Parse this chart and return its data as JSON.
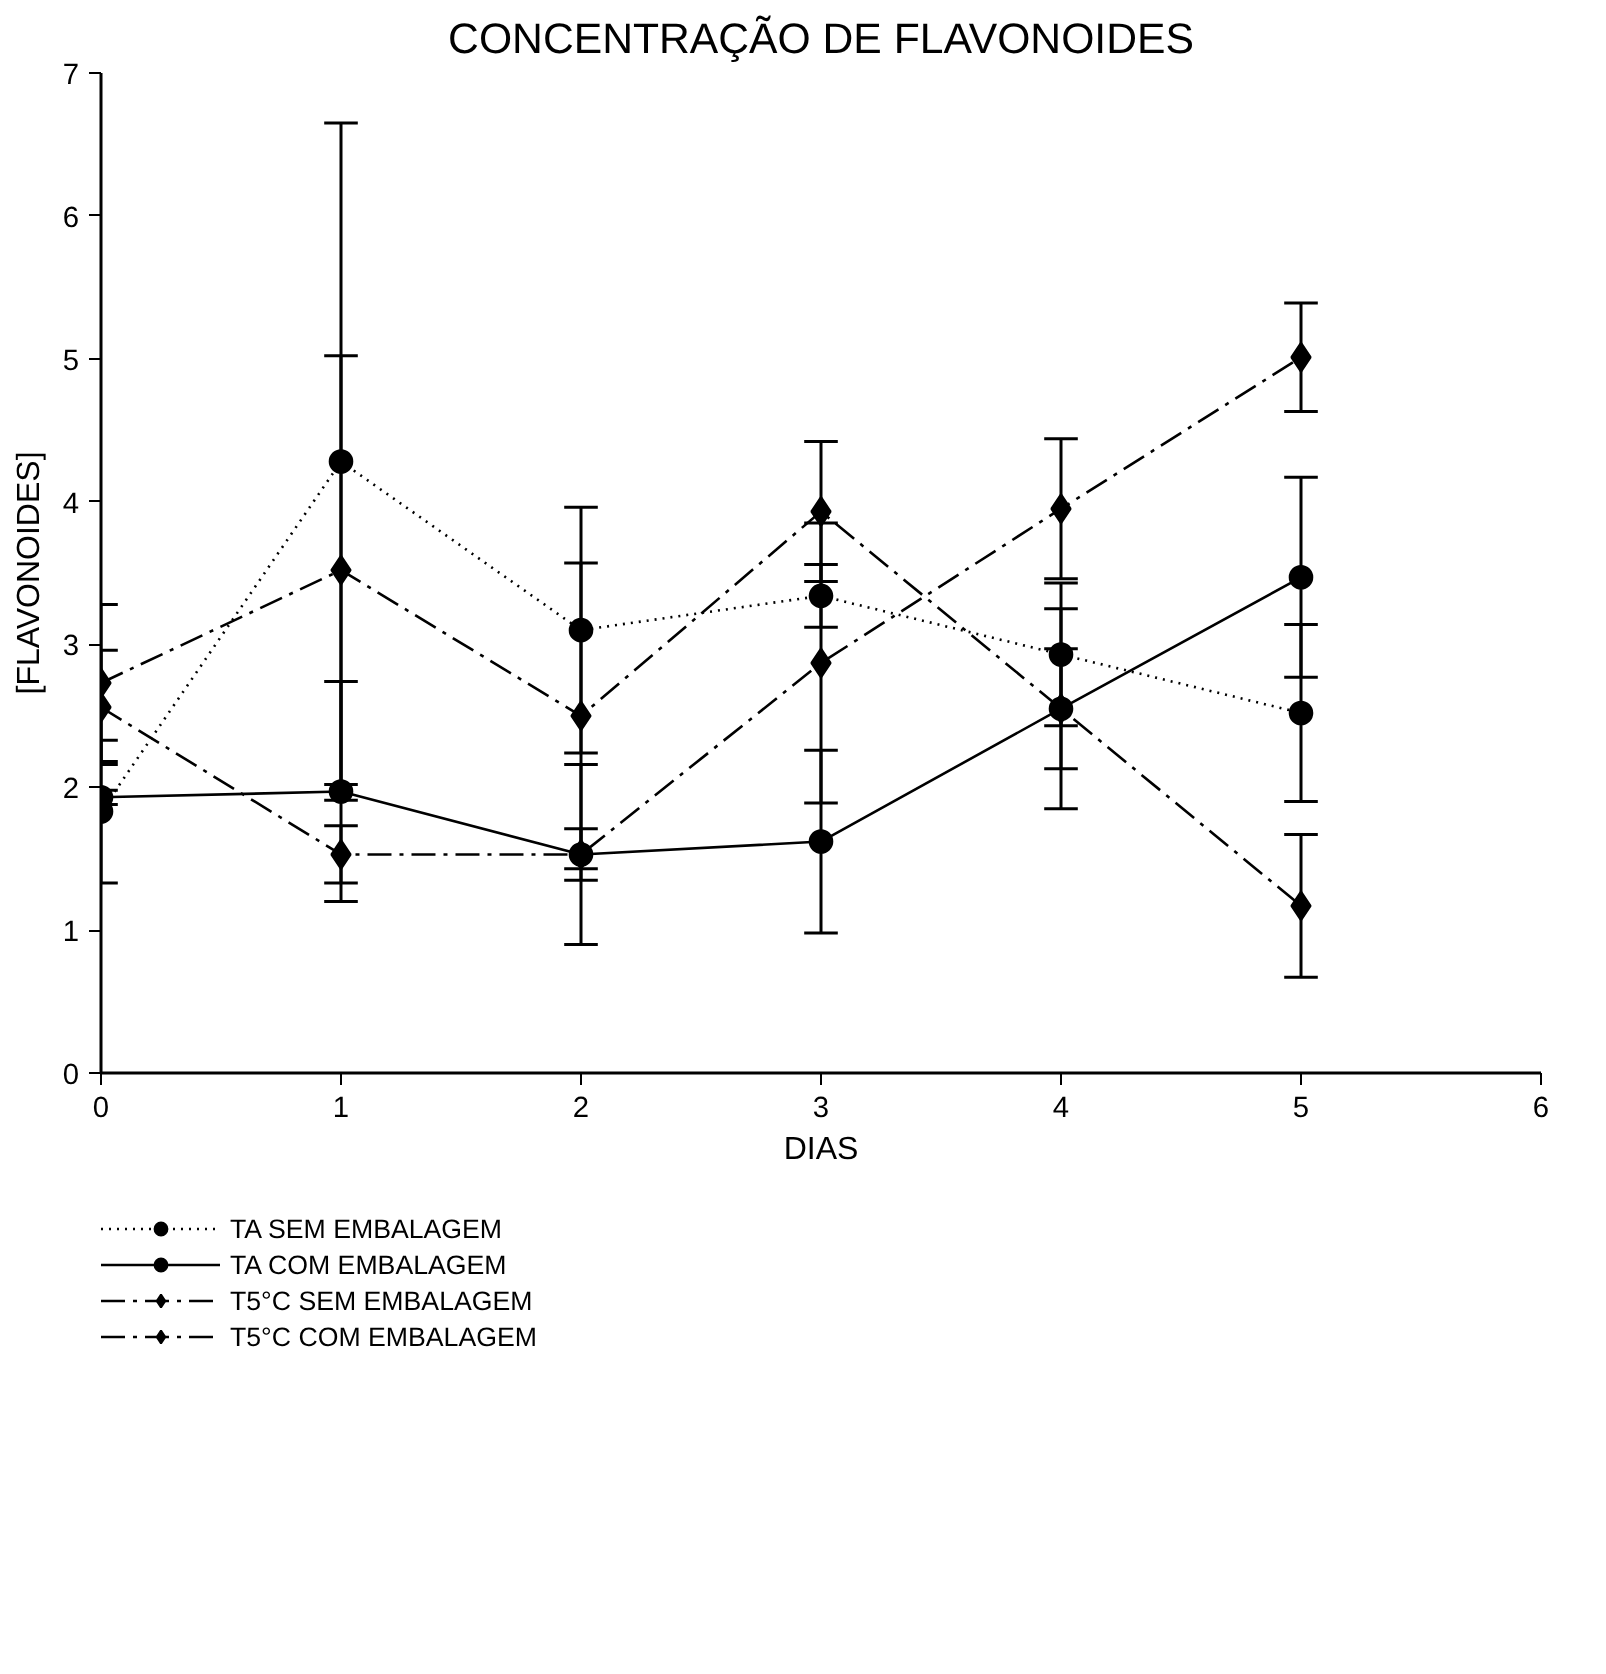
{
  "chart_data": {
    "type": "line",
    "title": "CONCENTRAÇÃO DE FLAVONOIDES",
    "xlabel": "DIAS",
    "ylabel": "[FLAVONOIDES]",
    "x": [
      0,
      1,
      2,
      3,
      4,
      5
    ],
    "xlim": [
      0,
      6
    ],
    "xticks": [
      0,
      1,
      2,
      3,
      4,
      5,
      6
    ],
    "ylim": [
      0,
      7
    ],
    "yticks": [
      0,
      1,
      2,
      3,
      4,
      5,
      6,
      7
    ],
    "grid": false,
    "legend": "bottom",
    "series": [
      {
        "name": "TA SEM EMBALAGEM",
        "color": "#000000",
        "marker": "circle",
        "line_style": "dotted",
        "values": [
          1.83,
          4.28,
          3.1,
          3.34,
          2.93,
          2.52
        ],
        "errors": [
          0.5,
          2.37,
          0.86,
          0.22,
          0.5,
          0.62
        ]
      },
      {
        "name": "TA COM EMBALAGEM",
        "color": "#000000",
        "marker": "circle",
        "line_style": "solid",
        "values": [
          1.93,
          1.97,
          1.53,
          1.62,
          2.55,
          3.47
        ],
        "errors": [
          0.05,
          0.77,
          0.63,
          0.64,
          0.42,
          0.7
        ]
      },
      {
        "name": "T5°C SEM EMBALAGEM",
        "color": "#000000",
        "marker": "diamond",
        "line_style": "dashed",
        "values": [
          2.56,
          1.53,
          1.53,
          2.87,
          3.95,
          5.01
        ],
        "errors": [
          0.4,
          0.2,
          0.18,
          0.98,
          0.49,
          0.38
        ]
      },
      {
        "name": "T5°C COM EMBALAGEM",
        "color": "#000000",
        "marker": "diamond",
        "line_style": "dashed",
        "values": [
          2.73,
          3.52,
          2.5,
          3.93,
          2.55,
          1.17
        ],
        "errors": [
          0.55,
          1.5,
          1.07,
          0.49,
          0.7,
          0.5
        ]
      }
    ]
  }
}
